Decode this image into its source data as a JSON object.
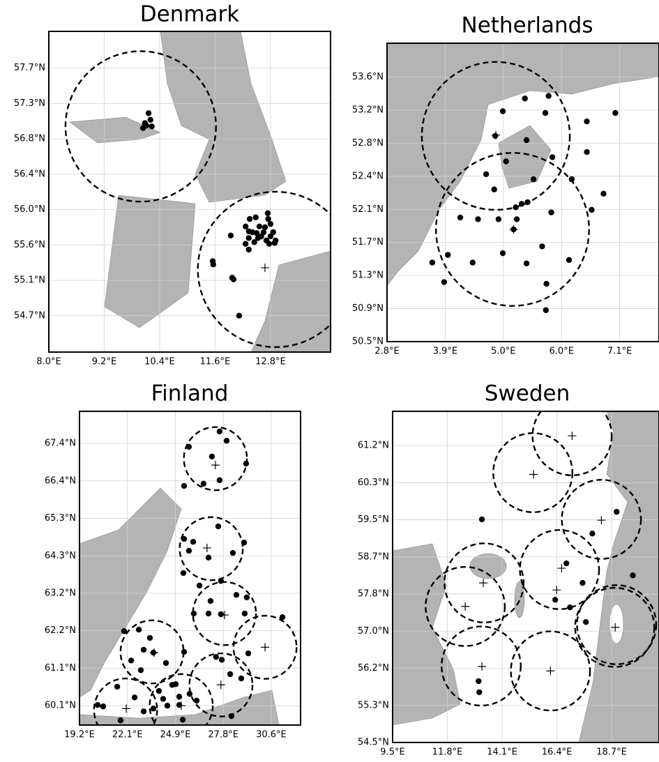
{
  "chart_data": [
    {
      "type": "scatter",
      "title": "Denmark",
      "color": "#000000",
      "grid": true,
      "xlim": [
        8.0,
        14.1
      ],
      "ylim": [
        54.26,
        58.14
      ],
      "xticks": [
        {
          "value": 8.0,
          "label": "8.0°E"
        },
        {
          "value": 9.2,
          "label": "9.2°E"
        },
        {
          "value": 10.4,
          "label": "10.4°E"
        },
        {
          "value": 11.6,
          "label": "11.6°E"
        },
        {
          "value": 12.8,
          "label": "12.8°E"
        }
      ],
      "yticks": [
        {
          "value": 54.7,
          "label": "54.7°N"
        },
        {
          "value": 55.128,
          "label": "55.1°N"
        },
        {
          "value": 55.556,
          "label": "55.6°N"
        },
        {
          "value": 55.984,
          "label": "56.0°N"
        },
        {
          "value": 56.412,
          "label": "56.4°N"
        },
        {
          "value": 56.84,
          "label": "56.8°N"
        },
        {
          "value": 57.268,
          "label": "57.3°N"
        },
        {
          "value": 57.696,
          "label": "57.7°N"
        }
      ],
      "x": [
        10.16,
        10.2,
        10.08,
        10.04,
        10.23,
        10.11,
        12.48,
        12.75,
        12.35,
        12.26,
        12.56,
        12.8,
        12.41,
        12.65,
        12.86,
        12.33,
        12.53,
        12.71,
        12.91,
        12.26,
        12.45,
        12.77,
        12.33,
        12.6,
        11.94,
        11.55,
        11.56,
        11.97,
        12.0,
        12.12,
        12.74,
        12.68,
        12.8,
        12.5,
        12.33,
        12.89
      ],
      "y": [
        57.15,
        57.07,
        57.03,
        56.97,
        56.99,
        57.0,
        55.89,
        55.87,
        55.87,
        55.78,
        55.78,
        55.81,
        55.71,
        55.71,
        55.71,
        55.64,
        55.64,
        55.61,
        55.61,
        55.57,
        55.59,
        55.57,
        55.5,
        55.66,
        55.67,
        55.36,
        55.32,
        55.16,
        55.14,
        54.7,
        55.94,
        55.77,
        55.66,
        55.7,
        55.72,
        55.58
      ],
      "circles": {
        "x": [
          9.99,
          12.91
        ],
        "y": [
          56.99,
          55.26
        ],
        "r": [
          0.91,
          0.94
        ]
      },
      "crosses": {
        "x": [
          12.68
        ],
        "y": [
          55.28
        ]
      }
    },
    {
      "type": "scatter",
      "title": "Netherlands",
      "color": "#000000",
      "grid": true,
      "xlim": [
        2.8,
        7.85
      ],
      "ylim": [
        50.5,
        54.01
      ],
      "xticks": [
        {
          "value": 2.8,
          "label": "2.8°E"
        },
        {
          "value": 3.88,
          "label": "3.9°E"
        },
        {
          "value": 4.96,
          "label": "5.0°E"
        },
        {
          "value": 6.04,
          "label": "6.0°E"
        },
        {
          "value": 7.12,
          "label": "7.1°E"
        }
      ],
      "yticks": [
        {
          "value": 50.5,
          "label": "50.5°N"
        },
        {
          "value": 50.889,
          "label": "50.9°N"
        },
        {
          "value": 51.278,
          "label": "51.3°N"
        },
        {
          "value": 51.667,
          "label": "51.7°N"
        },
        {
          "value": 52.056,
          "label": "52.1°N"
        },
        {
          "value": 52.445,
          "label": "52.4°N"
        },
        {
          "value": 52.834,
          "label": "52.8°N"
        },
        {
          "value": 53.223,
          "label": "53.2°N"
        },
        {
          "value": 53.612,
          "label": "53.6°N"
        }
      ],
      "x": [
        4.95,
        5.36,
        5.8,
        5.74,
        6.51,
        7.04,
        4.81,
        5.39,
        6.51,
        5.87,
        5.01,
        4.64,
        6.23,
        5.52,
        6.82,
        4.79,
        5.41,
        5.3,
        5.19,
        6.6,
        5.85,
        4.16,
        4.49,
        4.87,
        5.21,
        5.15,
        5.68,
        4.95,
        6.18,
        5.39,
        4.39,
        3.93,
        3.64,
        3.86,
        5.76,
        5.75
      ],
      "y": [
        53.21,
        53.36,
        53.39,
        53.19,
        53.09,
        53.19,
        52.92,
        52.87,
        52.73,
        52.67,
        52.62,
        52.47,
        52.41,
        52.41,
        52.24,
        52.29,
        52.14,
        52.12,
        52.08,
        52.05,
        52.02,
        51.96,
        51.94,
        51.94,
        51.94,
        51.82,
        51.62,
        51.54,
        51.46,
        51.42,
        51.43,
        51.52,
        51.43,
        51.2,
        51.18,
        50.87
      ],
      "circles": {
        "x": [
          4.82,
          5.13
        ],
        "y": [
          52.92,
          51.82
        ],
        "r": [
          0.87,
          0.9
        ]
      },
      "crosses": {
        "x": [
          4.82,
          5.15
        ],
        "y": [
          52.93,
          51.82
        ]
      }
    },
    {
      "type": "scatter",
      "title": "Finland",
      "color": "#000000",
      "grid": true,
      "xlim": [
        19.2,
        32.39
      ],
      "ylim": [
        59.56,
        68.31
      ],
      "xticks": [
        {
          "value": 19.2,
          "label": "19.2°E"
        },
        {
          "value": 22.06,
          "label": "22.1°E"
        },
        {
          "value": 24.92,
          "label": "24.9°E"
        },
        {
          "value": 27.78,
          "label": "27.8°E"
        },
        {
          "value": 30.64,
          "label": "30.6°E"
        }
      ],
      "yticks": [
        {
          "value": 60.1,
          "label": "60.1°N"
        },
        {
          "value": 61.145,
          "label": "61.1°N"
        },
        {
          "value": 62.19,
          "label": "62.2°N"
        },
        {
          "value": 63.235,
          "label": "63.2°N"
        },
        {
          "value": 64.28,
          "label": "64.3°N"
        },
        {
          "value": 65.325,
          "label": "65.3°N"
        },
        {
          "value": 66.37,
          "label": "66.4°N"
        },
        {
          "value": 67.415,
          "label": "67.4°N"
        }
      ],
      "x": [
        27.56,
        27.98,
        25.73,
        27.1,
        29.14,
        27.56,
        25.44,
        26.6,
        27.48,
        25.44,
        25.98,
        25.73,
        29.02,
        26.9,
        28.35,
        25.4,
        27.64,
        26.36,
        28.56,
        29.18,
        27.02,
        27.64,
        26.02,
        31.31,
        26.9,
        29.06,
        21.86,
        22.74,
        23.4,
        23.03,
        23.61,
        25.44,
        22.28,
        24.36,
        22.86,
        24.73,
        27.35,
        29.27,
        28.85,
        28.27,
        24.94,
        23.94,
        24.19,
        24.44,
        25.15,
        25.77,
        25.36,
        23.61,
        22.49,
        21.45,
        20.61,
        21.65,
        20.28,
        25.15,
        26.19,
        23.03,
        28.19,
        27.69
      ],
      "y": [
        67.75,
        67.49,
        67.32,
        67.05,
        66.85,
        66.39,
        66.23,
        66.29,
        65.1,
        64.75,
        64.67,
        64.42,
        64.65,
        64.23,
        64.36,
        63.8,
        63.58,
        63.45,
        63.19,
        63.12,
        63.02,
        62.65,
        62.67,
        62.57,
        62.67,
        62.67,
        62.18,
        62.22,
        61.99,
        61.66,
        61.58,
        61.6,
        61.36,
        61.29,
        61.09,
        60.68,
        61.46,
        61.56,
        60.86,
        59.81,
        60.7,
        60.51,
        60.29,
        60.1,
        60.35,
        60.43,
        59.71,
        60.02,
        60.33,
        60.63,
        60.08,
        59.69,
        60.12,
        60.12,
        60.24,
        59.94,
        60.98,
        61.38
      ],
      "circles": {
        "x": [
          27.31,
          27.06,
          27.85,
          23.53,
          30.27,
          27.64,
          21.95,
          25.27
        ],
        "y": [
          66.99,
          64.48,
          62.67,
          61.6,
          61.73,
          60.68,
          59.98,
          60.1
        ],
        "r": [
          0.88,
          0.88,
          0.88,
          0.88,
          0.88,
          0.88,
          0.88,
          0.88
        ]
      },
      "crosses": {
        "x": [
          27.31,
          26.81,
          27.85,
          23.65,
          30.27,
          27.64,
          21.99,
          25.27
        ],
        "y": [
          66.81,
          64.5,
          62.63,
          61.58,
          61.73,
          60.68,
          60.02,
          60.1
        ]
      }
    },
    {
      "type": "scatter",
      "title": "Sweden",
      "color": "#000000",
      "grid": true,
      "xlim": [
        9.5,
        20.69
      ],
      "ylim": [
        54.5,
        61.95
      ],
      "xticks": [
        {
          "value": 9.5,
          "label": "9.5°E"
        },
        {
          "value": 11.8,
          "label": "11.8°E"
        },
        {
          "value": 14.1,
          "label": "14.1°E"
        },
        {
          "value": 16.4,
          "label": "16.4°E"
        },
        {
          "value": 18.7,
          "label": "18.7°E"
        }
      ],
      "yticks": [
        {
          "value": 54.5,
          "label": "54.5°N"
        },
        {
          "value": 55.335,
          "label": "55.3°N"
        },
        {
          "value": 56.17,
          "label": "56.2°N"
        },
        {
          "value": 57.005,
          "label": "57.0°N"
        },
        {
          "value": 57.84,
          "label": "57.8°N"
        },
        {
          "value": 58.675,
          "label": "58.7°N"
        },
        {
          "value": 59.51,
          "label": "59.5°N"
        },
        {
          "value": 60.345,
          "label": "60.3°N"
        },
        {
          "value": 61.18,
          "label": "61.2°N"
        }
      ],
      "x": [
        13.25,
        18.91,
        17.89,
        19.59,
        16.8,
        17.48,
        16.33,
        16.95,
        17.62,
        13.11,
        13.14
      ],
      "y": [
        59.52,
        59.69,
        59.2,
        58.26,
        58.53,
        58.09,
        57.71,
        57.54,
        57.21,
        55.88,
        55.63
      ],
      "circles": {
        "x": [
          17.04,
          15.39,
          18.27,
          13.34,
          16.51,
          12.55,
          18.91,
          18.83,
          13.22,
          16.13
        ],
        "y": [
          61.4,
          60.57,
          59.52,
          58.09,
          58.39,
          57.56,
          57.15,
          57.09,
          56.22,
          56.11
        ],
        "r": [
          0.89,
          0.89,
          0.89,
          0.89,
          0.89,
          0.89,
          0.89,
          0.89,
          0.89,
          0.89
        ]
      },
      "crosses": {
        "x": [
          17.04,
          15.42,
          18.27,
          13.31,
          16.6,
          16.39,
          12.55,
          18.85,
          13.25,
          16.13
        ],
        "y": [
          61.4,
          60.53,
          59.5,
          58.09,
          58.42,
          57.93,
          57.56,
          57.09,
          56.21,
          56.11
        ]
      }
    }
  ]
}
